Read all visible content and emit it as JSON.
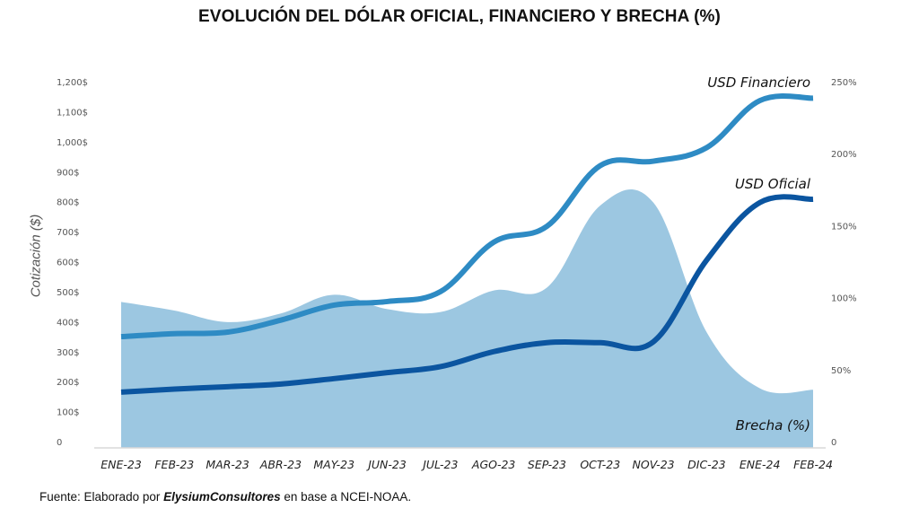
{
  "chart_data": {
    "type": "line",
    "title": "EVOLUCIÓN DEL DÓLAR OFICIAL, FINANCIERO Y BRECHA (%)",
    "ylabel": "Cotización ($)",
    "y2label": "",
    "xlabel": "",
    "categories": [
      "ENE-23",
      "FEB-23",
      "MAR-23",
      "ABR-23",
      "MAY-23",
      "JUN-23",
      "JUL-23",
      "AGO-23",
      "SEP-23",
      "OCT-23",
      "NOV-23",
      "DIC-23",
      "ENE-24",
      "FEB-24"
    ],
    "ylim": [
      0,
      1200
    ],
    "y2lim": [
      0,
      250
    ],
    "yticks": [
      0,
      100,
      200,
      300,
      400,
      500,
      600,
      700,
      800,
      900,
      1000,
      1100,
      1200
    ],
    "yticklabels": [
      "0",
      "100$",
      "200$",
      "300$",
      "400$",
      "500$",
      "600$",
      "700$",
      "800$",
      "900$",
      "1,000$",
      "1,100$",
      "1,200$"
    ],
    "y2ticks": [
      0,
      50,
      100,
      150,
      200,
      250
    ],
    "y2ticklabels": [
      "0",
      "50%",
      "100%",
      "150%",
      "200%",
      "250%"
    ],
    "grid": false,
    "series": [
      {
        "name": "Brecha (%)",
        "type": "area",
        "axis": "right",
        "color": "#9CC7E1",
        "values": [
          97,
          91,
          83,
          89,
          102,
          92,
          90,
          105,
          107,
          164,
          166,
          76,
          37,
          36
        ]
      },
      {
        "name": "USD Financiero",
        "type": "line",
        "axis": "left",
        "color": "#2E8BC4",
        "values": [
          350,
          360,
          365,
          405,
          455,
          467,
          500,
          665,
          718,
          920,
          935,
          980,
          1137,
          1145
        ]
      },
      {
        "name": "USD Oficial",
        "type": "line",
        "axis": "left",
        "color": "#0B55A0",
        "values": [
          165,
          175,
          183,
          192,
          210,
          230,
          250,
          300,
          330,
          330,
          333,
          605,
          797,
          808
        ]
      }
    ],
    "legend": "inline labels at right end of series"
  },
  "source": {
    "prefix": "Fuente:",
    "text1": " Elaborado por ",
    "author": "ElysiumConsultores",
    "text2": " en base a NCEI-NOAA."
  }
}
